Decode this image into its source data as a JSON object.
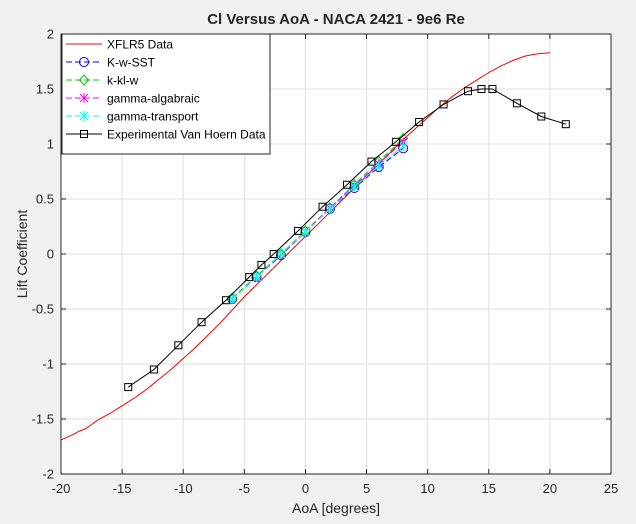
{
  "chart_data": {
    "type": "line",
    "title": "Cl Versus AoA - NACA 2421 - 9e6 Re",
    "xlabel": "AoA [degrees]",
    "ylabel": "Lift Coefficient",
    "xlim": [
      -20,
      25
    ],
    "ylim": [
      -2,
      2
    ],
    "xticks": [
      -20,
      -15,
      -10,
      -5,
      0,
      5,
      10,
      15,
      20,
      25
    ],
    "yticks": [
      -2,
      -1.5,
      -1,
      -0.5,
      0,
      0.5,
      1,
      1.5,
      2
    ],
    "grid": true,
    "legend_position": "top-left",
    "series": [
      {
        "name": "XFLR5 Data",
        "color": "#ff0000",
        "linestyle": "solid",
        "marker": "none",
        "x": [
          -20,
          -19,
          -18.5,
          -18,
          -17.5,
          -17,
          -16,
          -15,
          -14,
          -13,
          -12,
          -11,
          -10,
          -9,
          -8,
          -7,
          -6,
          -5,
          -4,
          -3,
          -2,
          -1,
          0,
          1,
          2,
          3,
          4,
          5,
          6,
          7,
          8,
          9,
          10,
          11,
          12,
          13,
          14,
          15,
          16,
          17,
          18,
          19,
          20
        ],
        "y": [
          -1.69,
          -1.64,
          -1.61,
          -1.59,
          -1.55,
          -1.51,
          -1.45,
          -1.38,
          -1.31,
          -1.23,
          -1.14,
          -1.05,
          -0.95,
          -0.85,
          -0.74,
          -0.63,
          -0.51,
          -0.39,
          -0.28,
          -0.17,
          -0.06,
          0.05,
          0.16,
          0.27,
          0.38,
          0.49,
          0.6,
          0.71,
          0.82,
          0.93,
          1.04,
          1.14,
          1.24,
          1.34,
          1.43,
          1.51,
          1.58,
          1.65,
          1.71,
          1.76,
          1.8,
          1.82,
          1.83
        ]
      },
      {
        "name": "K-w-SST",
        "color": "#0000ff",
        "linestyle": "dashed",
        "marker": "circle",
        "x": [
          -6,
          -4,
          -2,
          0,
          2,
          4,
          6,
          8
        ],
        "y": [
          -0.41,
          -0.21,
          -0.01,
          0.2,
          0.41,
          0.6,
          0.79,
          0.96
        ]
      },
      {
        "name": "k-kl-w",
        "color": "#00cc00",
        "linestyle": "dashed",
        "marker": "diamond",
        "x": [
          -6,
          -4,
          -2,
          0,
          2,
          4,
          6,
          8
        ],
        "y": [
          -0.4,
          -0.2,
          0,
          0.21,
          0.42,
          0.63,
          0.84,
          1.05
        ]
      },
      {
        "name": "gamma-algabraic",
        "color": "#ff00ff",
        "linestyle": "dashed",
        "marker": "x-star",
        "x": [
          -6,
          -4,
          -2,
          0,
          2,
          4,
          6,
          8
        ],
        "y": [
          -0.41,
          -0.21,
          0,
          0.2,
          0.42,
          0.62,
          0.82,
          1.02
        ]
      },
      {
        "name": "gamma-transport",
        "color": "#00ffff",
        "linestyle": "dashed",
        "marker": "asterisk",
        "x": [
          -6,
          -4,
          -2,
          0,
          2,
          4,
          6,
          8
        ],
        "y": [
          -0.41,
          -0.21,
          0,
          0.2,
          0.41,
          0.61,
          0.8,
          0.98
        ]
      },
      {
        "name": "Experimental Van Hoern Data",
        "color": "#000000",
        "linestyle": "solid",
        "marker": "square",
        "x": [
          -14.5,
          -12.4,
          -10.4,
          -8.5,
          -6.5,
          -4.6,
          -3.6,
          -2.6,
          -0.6,
          1.4,
          3.4,
          5.4,
          7.4,
          9.3,
          11.3,
          13.3,
          14.4,
          15.3,
          17.3,
          19.3,
          21.3
        ],
        "y": [
          -1.21,
          -1.05,
          -0.83,
          -0.62,
          -0.42,
          -0.21,
          -0.1,
          0.0,
          0.21,
          0.43,
          0.63,
          0.84,
          1.02,
          1.2,
          1.36,
          1.48,
          1.5,
          1.5,
          1.37,
          1.25,
          1.18
        ]
      }
    ]
  }
}
